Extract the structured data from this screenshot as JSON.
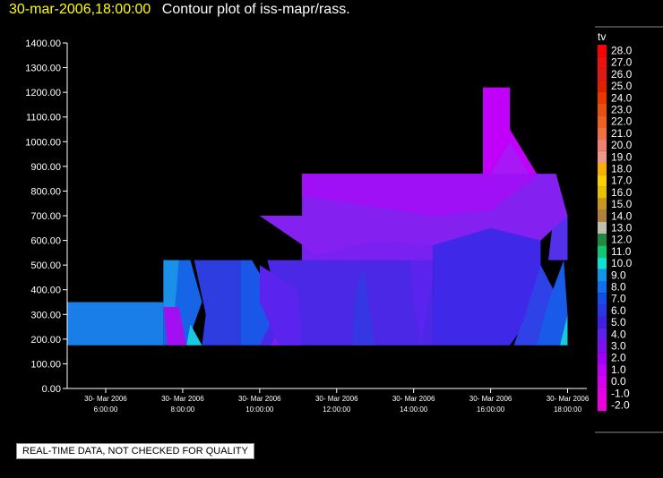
{
  "header": {
    "timestamp": "30-mar-2006,18:00:00",
    "title": "Contour plot of iss-mapr/rass."
  },
  "footnote": "REAL-TIME DATA, NOT CHECKED FOR QUALITY",
  "chart_data": {
    "type": "heatmap",
    "title": "Contour plot of iss-mapr/rass.",
    "ylabel": "",
    "xlabel": "",
    "ylim": [
      0,
      1400
    ],
    "xlim": [
      "2006-03-30 05:00",
      "2006-03-30 18:30"
    ],
    "y_ticks": [
      "0.00",
      "100.00",
      "200.00",
      "300.00",
      "400.00",
      "500.00",
      "600.00",
      "700.00",
      "800.00",
      "900.00",
      "1000.00",
      "1100.00",
      "1200.00",
      "1300.00",
      "1400.00"
    ],
    "x_ticks": [
      {
        "date": "30- Mar 2006",
        "time": "6:00:00",
        "hour": 6
      },
      {
        "date": "30- Mar 2006",
        "time": "8:00:00",
        "hour": 8
      },
      {
        "date": "30- Mar 2006",
        "time": "10:00:00",
        "hour": 10
      },
      {
        "date": "30- Mar 2006",
        "time": "12:00:00",
        "hour": 12
      },
      {
        "date": "30- Mar 2006",
        "time": "14:00:00",
        "hour": 14
      },
      {
        "date": "30- Mar 2006",
        "time": "16:00:00",
        "hour": 16
      },
      {
        "date": "30- Mar 2006",
        "time": "18:00:00",
        "hour": 18
      }
    ],
    "colorbar": {
      "label": "tv",
      "levels": [
        {
          "value": "28.0",
          "color": "#ff0000"
        },
        {
          "value": "27.0",
          "color": "#f01010"
        },
        {
          "value": "26.0",
          "color": "#e01818"
        },
        {
          "value": "25.0",
          "color": "#e02000"
        },
        {
          "value": "24.0",
          "color": "#e83800"
        },
        {
          "value": "23.0",
          "color": "#e85010"
        },
        {
          "value": "22.0",
          "color": "#f06020"
        },
        {
          "value": "21.0",
          "color": "#f07040"
        },
        {
          "value": "20.0",
          "color": "#f08070"
        },
        {
          "value": "19.0",
          "color": "#f09888"
        },
        {
          "value": "18.0",
          "color": "#f8b000"
        },
        {
          "value": "17.0",
          "color": "#ffd000"
        },
        {
          "value": "16.0",
          "color": "#e8c000"
        },
        {
          "value": "15.0",
          "color": "#c89820"
        },
        {
          "value": "14.0",
          "color": "#b08040"
        },
        {
          "value": "13.0",
          "color": "#c0c0b0"
        },
        {
          "value": "12.0",
          "color": "#208840"
        },
        {
          "value": "11.0",
          "color": "#10c870"
        },
        {
          "value": "10.0",
          "color": "#10e0d0"
        },
        {
          "value": "9.0",
          "color": "#1098e8"
        },
        {
          "value": "8.0",
          "color": "#1070f0"
        },
        {
          "value": "7.0",
          "color": "#1050e8"
        },
        {
          "value": "6.0",
          "color": "#2838e8"
        },
        {
          "value": "5.0",
          "color": "#4020e8"
        },
        {
          "value": "4.0",
          "color": "#6020f0"
        },
        {
          "value": "3.0",
          "color": "#8010f0"
        },
        {
          "value": "2.0",
          "color": "#a000f8"
        },
        {
          "value": "1.0",
          "color": "#c000f8"
        },
        {
          "value": "0.0",
          "color": "#d800f0"
        },
        {
          "value": "-1.0",
          "color": "#e800e8"
        },
        {
          "value": "-2.0",
          "color": "#f000d8"
        }
      ]
    },
    "regions": [
      {
        "tv": "9.0",
        "color": "#1a7ee8",
        "points": [
          [
            5.0,
            175
          ],
          [
            7.5,
            175
          ],
          [
            7.5,
            350
          ],
          [
            5.0,
            350
          ]
        ]
      },
      {
        "tv": "8.0",
        "color": "#1565e6",
        "points": [
          [
            7.5,
            175
          ],
          [
            8.1,
            175
          ],
          [
            8.5,
            350
          ],
          [
            8.2,
            520
          ],
          [
            7.5,
            520
          ]
        ]
      },
      {
        "tv": "9.0",
        "color": "#1a90e8",
        "points": [
          [
            7.5,
            330
          ],
          [
            7.8,
            330
          ],
          [
            7.9,
            520
          ],
          [
            7.5,
            520
          ]
        ]
      },
      {
        "tv": "3.0",
        "color": "#a010f0",
        "points": [
          [
            7.6,
            175
          ],
          [
            8.1,
            175
          ],
          [
            7.9,
            330
          ],
          [
            7.5,
            330
          ]
        ]
      },
      {
        "tv": "10.0",
        "color": "#18c8e0",
        "points": [
          [
            8.1,
            175
          ],
          [
            8.5,
            175
          ],
          [
            8.2,
            260
          ]
        ]
      },
      {
        "tv": "6.0",
        "color": "#2e3de0",
        "points": [
          [
            8.5,
            175
          ],
          [
            9.5,
            175
          ],
          [
            9.5,
            520
          ],
          [
            8.3,
            520
          ],
          [
            8.6,
            300
          ]
        ]
      },
      {
        "tv": "7.0",
        "color": "#1a56e8",
        "points": [
          [
            9.5,
            175
          ],
          [
            10.5,
            175
          ],
          [
            10.5,
            330
          ],
          [
            9.8,
            520
          ],
          [
            9.5,
            520
          ]
        ]
      },
      {
        "tv": "5.0",
        "color": "#4a28e6",
        "points": [
          [
            10.0,
            175
          ],
          [
            14.5,
            175
          ],
          [
            14.5,
            700
          ],
          [
            11.1,
            700
          ],
          [
            11.1,
            520
          ],
          [
            10.2,
            520
          ],
          [
            10.5,
            330
          ]
        ]
      },
      {
        "tv": "3.0",
        "color": "#7a20f0",
        "points": [
          [
            10.3,
            175
          ],
          [
            10.8,
            175
          ],
          [
            10.5,
            250
          ]
        ]
      },
      {
        "tv": "6.0",
        "color": "#3538e2",
        "points": [
          [
            12.4,
            175
          ],
          [
            13.0,
            175
          ],
          [
            12.7,
            490
          ],
          [
            12.5,
            400
          ]
        ]
      },
      {
        "tv": "5.0",
        "color": "#4028e8",
        "points": [
          [
            14.5,
            175
          ],
          [
            16.5,
            175
          ],
          [
            17.3,
            350
          ],
          [
            17.3,
            700
          ],
          [
            14.5,
            700
          ]
        ]
      },
      {
        "tv": "4.0",
        "color": "#5a24ee",
        "points": [
          [
            14.0,
            350
          ],
          [
            14.2,
            175
          ],
          [
            14.5,
            450
          ],
          [
            14.5,
            600
          ],
          [
            13.9,
            550
          ]
        ]
      },
      {
        "tv": "6.0",
        "color": "#2e42e8",
        "points": [
          [
            16.6,
            175
          ],
          [
            17.3,
            175
          ],
          [
            17.8,
            350
          ],
          [
            17.3,
            500
          ],
          [
            16.9,
            300
          ]
        ]
      },
      {
        "tv": "7.0",
        "color": "#1a5ae8",
        "points": [
          [
            17.2,
            175
          ],
          [
            17.8,
            175
          ],
          [
            18.0,
            300
          ],
          [
            17.9,
            520
          ],
          [
            17.5,
            350
          ]
        ]
      },
      {
        "tv": "10.0",
        "color": "#18c8e0",
        "points": [
          [
            17.8,
            175
          ],
          [
            18.0,
            175
          ],
          [
            18.0,
            300
          ]
        ]
      },
      {
        "tv": "5.0",
        "color": "#5530ea",
        "points": [
          [
            17.5,
            520
          ],
          [
            18.0,
            520
          ],
          [
            18.0,
            700
          ],
          [
            17.6,
            650
          ]
        ]
      },
      {
        "tv": "3.0",
        "color": "#7a20f0",
        "points": [
          [
            11.1,
            520
          ],
          [
            14.5,
            520
          ],
          [
            14.5,
            700
          ],
          [
            11.1,
            700
          ]
        ]
      },
      {
        "tv": "3.0",
        "color": "#8420f0",
        "points": [
          [
            10.0,
            700
          ],
          [
            11.1,
            700
          ],
          [
            11.1,
            870
          ],
          [
            14.5,
            870
          ],
          [
            15.8,
            870
          ],
          [
            17.3,
            870
          ],
          [
            17.7,
            870
          ],
          [
            18.0,
            700
          ],
          [
            17.3,
            600
          ],
          [
            16.0,
            650
          ],
          [
            14.5,
            580
          ],
          [
            13.0,
            600
          ],
          [
            11.5,
            540
          ]
        ]
      },
      {
        "tv": "2.0",
        "color": "#a010f6",
        "points": [
          [
            11.1,
            780
          ],
          [
            14.5,
            700
          ],
          [
            16.0,
            720
          ],
          [
            17.3,
            870
          ],
          [
            15.8,
            870
          ],
          [
            11.1,
            870
          ]
        ]
      },
      {
        "tv": "1.0",
        "color": "#c000f8",
        "points": [
          [
            15.8,
            870
          ],
          [
            15.8,
            1220
          ],
          [
            16.5,
            1220
          ],
          [
            16.5,
            1050
          ],
          [
            17.2,
            870
          ]
        ]
      },
      {
        "tv": "2.0",
        "color": "#a818f6",
        "points": [
          [
            16.0,
            870
          ],
          [
            16.5,
            1000
          ],
          [
            17.0,
            870
          ]
        ]
      },
      {
        "tv": "4.0",
        "color": "#5a24ee",
        "points": [
          [
            10.5,
            175
          ],
          [
            10.0,
            350
          ],
          [
            10.0,
            500
          ],
          [
            11.0,
            400
          ],
          [
            11.1,
            175
          ]
        ]
      }
    ]
  }
}
